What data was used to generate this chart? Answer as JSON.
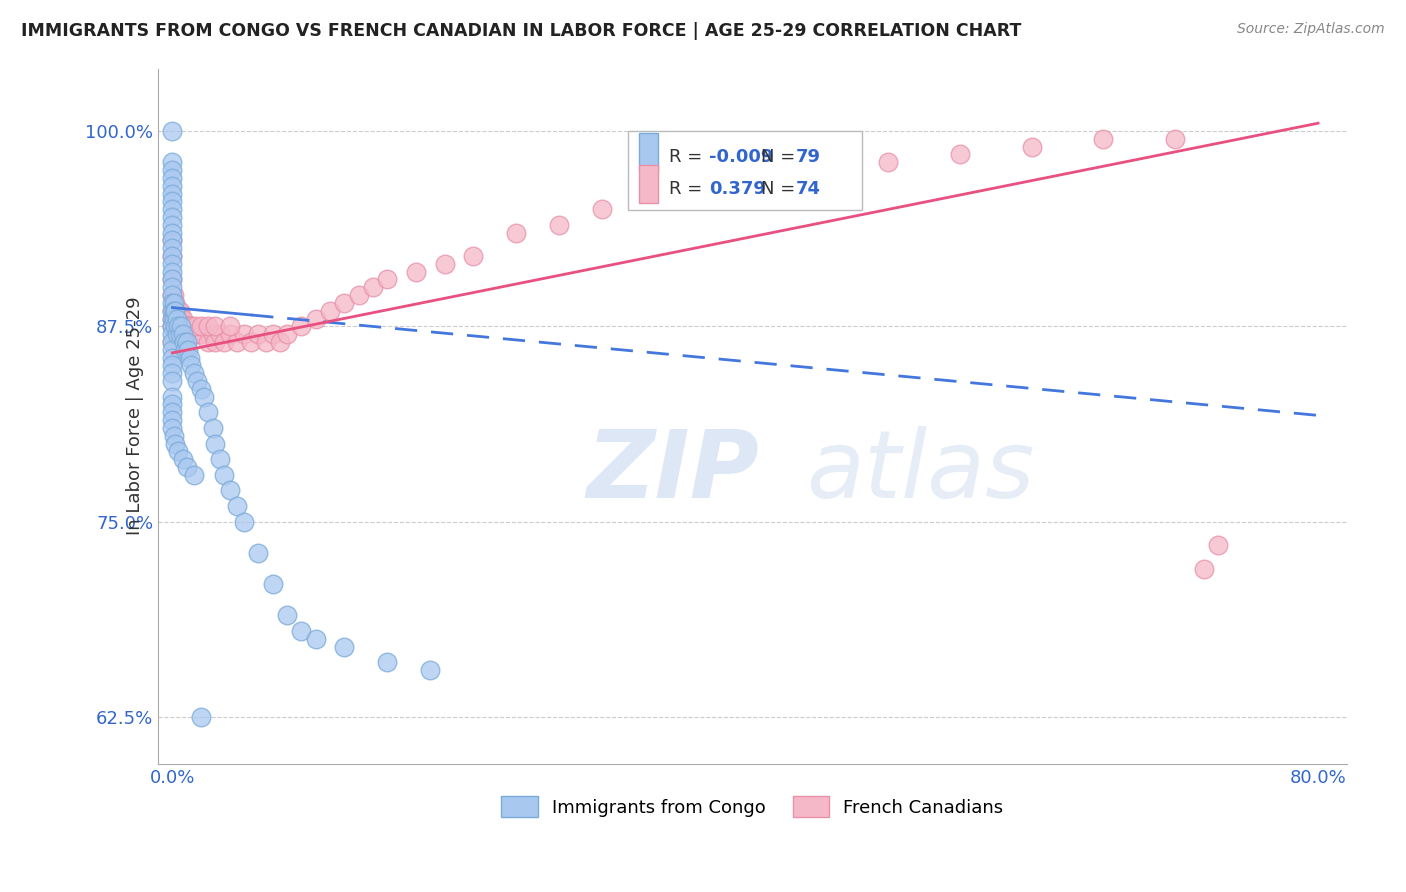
{
  "title": "IMMIGRANTS FROM CONGO VS FRENCH CANADIAN IN LABOR FORCE | AGE 25-29 CORRELATION CHART",
  "source": "Source: ZipAtlas.com",
  "ylabel": "In Labor Force | Age 25-29",
  "legend_label1": "Immigrants from Congo",
  "legend_label2": "French Canadians",
  "R1": "-0.009",
  "N1": "79",
  "R2": "0.379",
  "N2": "74",
  "xlim": [
    -0.01,
    0.82
  ],
  "ylim": [
    0.595,
    1.04
  ],
  "xticks": [
    0.0,
    0.2,
    0.4,
    0.6,
    0.8
  ],
  "xticklabels": [
    "0.0%",
    "",
    "",
    "",
    "80.0%"
  ],
  "yticks": [
    0.625,
    0.75,
    0.875,
    1.0
  ],
  "yticklabels": [
    "62.5%",
    "75.0%",
    "87.5%",
    "100.0%"
  ],
  "blue_dot_color": "#A8C8F0",
  "blue_dot_edge": "#7AAAD8",
  "pink_dot_color": "#F5B8C8",
  "pink_dot_edge": "#E890A8",
  "blue_line_color": "#4477DD",
  "pink_line_color": "#E85080",
  "grid_color": "#CCCCCC",
  "blue_x": [
    0.0,
    0.0,
    0.0,
    0.0,
    0.0,
    0.0,
    0.0,
    0.0,
    0.0,
    0.0,
    0.0,
    0.0,
    0.0,
    0.0,
    0.0,
    0.0,
    0.0,
    0.0,
    0.0,
    0.0,
    0.0,
    0.0,
    0.0,
    0.0,
    0.0,
    0.0,
    0.0,
    0.0,
    0.0,
    0.0,
    0.001,
    0.001,
    0.001,
    0.002,
    0.002,
    0.003,
    0.003,
    0.004,
    0.005,
    0.006,
    0.007,
    0.008,
    0.009,
    0.01,
    0.011,
    0.012,
    0.013,
    0.015,
    0.017,
    0.02,
    0.022,
    0.025,
    0.028,
    0.03,
    0.033,
    0.036,
    0.04,
    0.045,
    0.05,
    0.06,
    0.07,
    0.08,
    0.09,
    0.1,
    0.12,
    0.15,
    0.18,
    0.0,
    0.0,
    0.0,
    0.0,
    0.0,
    0.001,
    0.002,
    0.004,
    0.007,
    0.01,
    0.015,
    0.02
  ],
  "blue_y": [
    1.0,
    0.98,
    0.975,
    0.97,
    0.965,
    0.96,
    0.955,
    0.95,
    0.945,
    0.94,
    0.935,
    0.93,
    0.925,
    0.92,
    0.915,
    0.91,
    0.905,
    0.9,
    0.895,
    0.89,
    0.885,
    0.88,
    0.875,
    0.87,
    0.865,
    0.86,
    0.855,
    0.85,
    0.845,
    0.84,
    0.89,
    0.885,
    0.88,
    0.885,
    0.875,
    0.88,
    0.87,
    0.875,
    0.87,
    0.875,
    0.87,
    0.865,
    0.86,
    0.865,
    0.86,
    0.855,
    0.85,
    0.845,
    0.84,
    0.835,
    0.83,
    0.82,
    0.81,
    0.8,
    0.79,
    0.78,
    0.77,
    0.76,
    0.75,
    0.73,
    0.71,
    0.69,
    0.68,
    0.675,
    0.67,
    0.66,
    0.655,
    0.83,
    0.825,
    0.82,
    0.815,
    0.81,
    0.805,
    0.8,
    0.795,
    0.79,
    0.785,
    0.78,
    0.625
  ],
  "pink_x": [
    0.0,
    0.0,
    0.0,
    0.0,
    0.0,
    0.0,
    0.0,
    0.001,
    0.001,
    0.002,
    0.003,
    0.004,
    0.005,
    0.006,
    0.007,
    0.009,
    0.01,
    0.012,
    0.014,
    0.016,
    0.018,
    0.02,
    0.025,
    0.028,
    0.03,
    0.033,
    0.036,
    0.04,
    0.045,
    0.05,
    0.055,
    0.06,
    0.065,
    0.07,
    0.075,
    0.08,
    0.09,
    0.1,
    0.11,
    0.12,
    0.13,
    0.14,
    0.15,
    0.17,
    0.19,
    0.21,
    0.24,
    0.27,
    0.3,
    0.33,
    0.36,
    0.4,
    0.45,
    0.5,
    0.55,
    0.6,
    0.65,
    0.7,
    0.72,
    0.73,
    0.0,
    0.0,
    0.001,
    0.002,
    0.003,
    0.005,
    0.007,
    0.01,
    0.013,
    0.016,
    0.02,
    0.025,
    0.03,
    0.04
  ],
  "pink_y": [
    0.93,
    0.92,
    0.905,
    0.895,
    0.885,
    0.875,
    0.865,
    0.895,
    0.885,
    0.89,
    0.885,
    0.885,
    0.885,
    0.88,
    0.88,
    0.875,
    0.875,
    0.875,
    0.87,
    0.87,
    0.87,
    0.87,
    0.865,
    0.87,
    0.865,
    0.87,
    0.865,
    0.87,
    0.865,
    0.87,
    0.865,
    0.87,
    0.865,
    0.87,
    0.865,
    0.87,
    0.875,
    0.88,
    0.885,
    0.89,
    0.895,
    0.9,
    0.905,
    0.91,
    0.915,
    0.92,
    0.935,
    0.94,
    0.95,
    0.96,
    0.965,
    0.97,
    0.975,
    0.98,
    0.985,
    0.99,
    0.995,
    0.995,
    0.72,
    0.735,
    0.88,
    0.875,
    0.88,
    0.875,
    0.875,
    0.875,
    0.875,
    0.875,
    0.875,
    0.875,
    0.875,
    0.875,
    0.875,
    0.875
  ],
  "blue_line_x0": 0.0,
  "blue_line_y0": 0.887,
  "blue_line_x1": 0.8,
  "blue_line_y1": 0.818,
  "pink_line_x0": 0.0,
  "pink_line_y0": 0.858,
  "pink_line_x1": 0.8,
  "pink_line_y1": 1.005,
  "watermark_zip_color": "#C8D8F0",
  "watermark_atlas_color": "#C8D8EC"
}
